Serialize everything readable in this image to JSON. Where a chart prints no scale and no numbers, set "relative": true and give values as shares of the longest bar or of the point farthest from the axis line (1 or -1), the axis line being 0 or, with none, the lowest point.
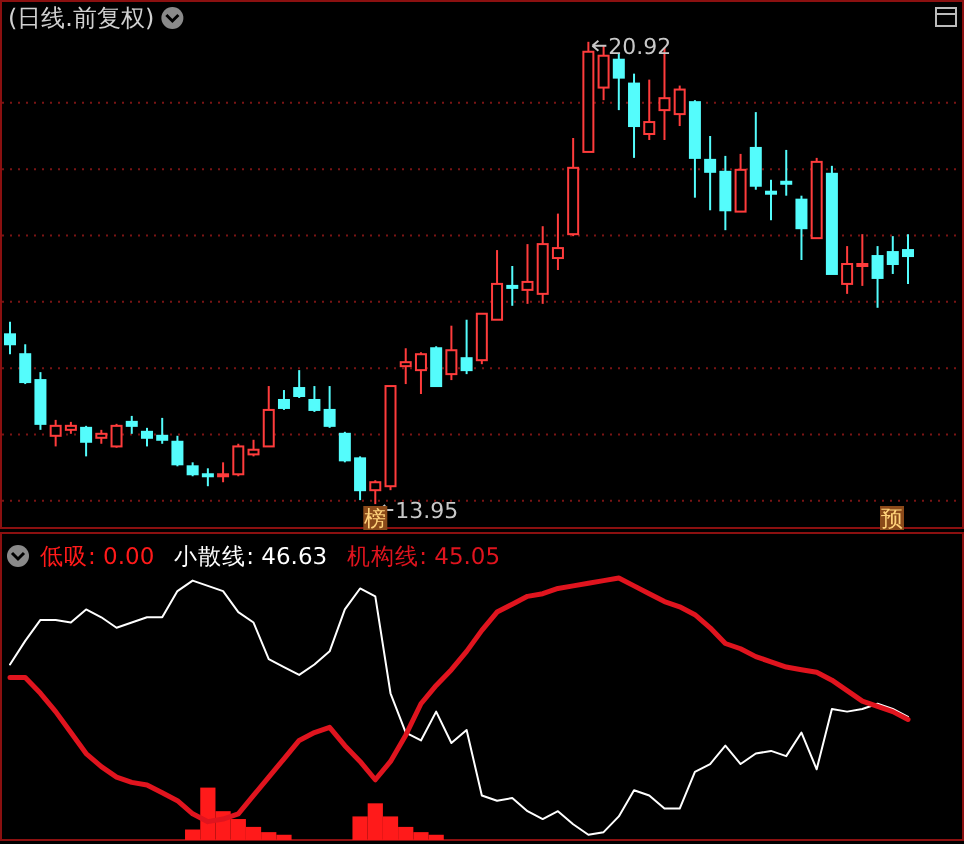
{
  "chart_data": [
    {
      "type": "candlestick",
      "title": "(日线.前复权)",
      "categories": [
        null,
        null,
        null,
        null,
        null,
        null,
        null,
        null,
        null,
        null,
        null,
        null,
        null,
        null,
        null,
        null,
        null,
        null,
        null,
        null,
        null,
        null,
        null,
        null,
        null,
        null,
        null,
        null,
        null,
        null,
        null,
        null,
        null,
        null,
        null,
        null,
        null,
        null,
        null,
        null,
        null,
        null,
        null,
        null,
        null,
        null,
        null,
        null,
        null,
        null,
        null,
        null,
        null,
        null,
        null,
        null,
        null,
        null,
        null,
        null
      ],
      "ohlc": [
        [
          16.51,
          16.7,
          16.21,
          16.36
        ],
        [
          16.21,
          16.36,
          15.76,
          15.79
        ],
        [
          15.82,
          15.94,
          15.07,
          15.16
        ],
        [
          14.98,
          15.22,
          14.82,
          15.13
        ],
        [
          15.07,
          15.19,
          15.01,
          15.13
        ],
        [
          15.1,
          15.13,
          14.67,
          14.89
        ],
        [
          14.95,
          15.07,
          14.86,
          15.01
        ],
        [
          14.82,
          15.16,
          14.8,
          15.13
        ],
        [
          15.19,
          15.28,
          15.01,
          15.13
        ],
        [
          15.04,
          15.1,
          14.82,
          14.95
        ],
        [
          14.98,
          15.25,
          14.86,
          14.92
        ],
        [
          14.89,
          14.98,
          14.52,
          14.55
        ],
        [
          14.52,
          14.58,
          14.37,
          14.4
        ],
        [
          14.4,
          14.49,
          14.22,
          14.37
        ],
        [
          14.37,
          14.58,
          14.28,
          14.4
        ],
        [
          14.4,
          14.86,
          14.37,
          14.82
        ],
        [
          14.7,
          14.92,
          14.67,
          14.77
        ],
        [
          14.82,
          15.73,
          14.82,
          15.37
        ],
        [
          15.52,
          15.67,
          15.37,
          15.4
        ],
        [
          15.7,
          15.97,
          15.55,
          15.58
        ],
        [
          15.52,
          15.73,
          15.34,
          15.37
        ],
        [
          15.37,
          15.73,
          15.1,
          15.13
        ],
        [
          15.01,
          15.04,
          14.58,
          14.61
        ],
        [
          14.64,
          14.67,
          14.01,
          14.16
        ],
        [
          14.16,
          14.31,
          13.95,
          14.28
        ],
        [
          14.22,
          15.73,
          14.16,
          15.73
        ],
        [
          16.03,
          16.3,
          15.76,
          16.09
        ],
        [
          15.97,
          16.24,
          15.61,
          16.21
        ],
        [
          16.3,
          16.33,
          15.73,
          15.73
        ],
        [
          15.91,
          16.64,
          15.82,
          16.27
        ],
        [
          16.15,
          16.73,
          15.91,
          15.97
        ],
        [
          16.12,
          16.82,
          16.06,
          16.82
        ],
        [
          16.73,
          17.78,
          16.73,
          17.27
        ],
        [
          17.24,
          17.54,
          16.94,
          17.21
        ],
        [
          17.18,
          17.87,
          16.97,
          17.3
        ],
        [
          17.12,
          18.14,
          16.97,
          17.87
        ],
        [
          17.66,
          18.33,
          17.48,
          17.81
        ],
        [
          18.02,
          19.47,
          17.99,
          19.02
        ],
        [
          19.26,
          20.92,
          19.26,
          20.77
        ],
        [
          20.23,
          20.86,
          20.04,
          20.71
        ],
        [
          20.65,
          20.74,
          19.89,
          20.38
        ],
        [
          20.29,
          20.44,
          19.17,
          19.65
        ],
        [
          19.53,
          20.35,
          19.44,
          19.71
        ],
        [
          19.89,
          20.83,
          19.44,
          20.07
        ],
        [
          19.83,
          20.26,
          19.65,
          20.2
        ],
        [
          20.01,
          20.04,
          18.57,
          19.17
        ],
        [
          19.14,
          19.5,
          18.38,
          18.96
        ],
        [
          18.96,
          19.2,
          18.08,
          18.38
        ],
        [
          18.36,
          19.23,
          18.36,
          18.99
        ],
        [
          19.32,
          19.86,
          18.69,
          18.75
        ],
        [
          18.66,
          18.84,
          18.23,
          18.63
        ],
        [
          18.81,
          19.29,
          18.6,
          18.78
        ],
        [
          18.54,
          18.6,
          17.63,
          18.11
        ],
        [
          17.96,
          19.17,
          17.96,
          19.11
        ],
        [
          18.93,
          19.05,
          17.42,
          17.42
        ],
        [
          17.27,
          17.84,
          17.12,
          17.57
        ],
        [
          17.54,
          18.02,
          17.24,
          17.57
        ],
        [
          17.69,
          17.84,
          16.91,
          17.36
        ],
        [
          17.75,
          17.99,
          17.42,
          17.57
        ],
        [
          17.78,
          18.02,
          17.27,
          17.69
        ]
      ],
      "ylim": [
        13.59,
        21.49
      ],
      "yticks": [
        {
          "value": 14,
          "label": null
        },
        {
          "value": 15,
          "label": null
        },
        {
          "value": 16,
          "label": null
        },
        {
          "value": 17,
          "label": null
        },
        {
          "value": 18,
          "label": null
        },
        {
          "value": 19,
          "label": null
        },
        {
          "value": 20,
          "label": null
        }
      ],
      "grid": "y",
      "annotations": [
        "20.92",
        "13.95",
        "榜",
        "预"
      ]
    },
    {
      "type": "line",
      "relative": true,
      "legend": "top left",
      "categories": [
        null,
        null,
        null,
        null,
        null,
        null,
        null,
        null,
        null,
        null,
        null,
        null,
        null,
        null,
        null,
        null,
        null,
        null,
        null,
        null,
        null,
        null,
        null,
        null,
        null,
        null,
        null,
        null,
        null,
        null,
        null,
        null,
        null,
        null,
        null,
        null,
        null,
        null,
        null,
        null,
        null,
        null,
        null,
        null,
        null,
        null,
        null,
        null,
        null,
        null,
        null,
        null,
        null,
        null,
        null,
        null,
        null,
        null,
        null,
        null
      ],
      "series": [
        {
          "name": "低吸: 0.00",
          "type": "bar",
          "color": "#ff1a1a",
          "values": [
            null,
            null,
            null,
            null,
            null,
            null,
            null,
            null,
            null,
            null,
            null,
            null,
            0.04,
            0.2,
            0.11,
            0.08,
            0.05,
            0.03,
            0.02,
            null,
            null,
            null,
            null,
            0.09,
            0.14,
            0.09,
            0.05,
            0.03,
            0.02,
            null,
            null,
            null,
            null,
            null,
            null,
            null,
            null,
            null,
            null,
            null,
            null,
            null,
            null,
            null,
            null,
            null,
            null,
            null,
            null,
            null,
            null,
            null,
            null,
            null,
            null,
            null,
            null,
            null,
            null,
            null
          ]
        },
        {
          "name": "小散线: 46.63",
          "color": "#ffffff",
          "values": [
            0.67,
            0.76,
            0.84,
            0.84,
            0.83,
            0.88,
            0.85,
            0.81,
            0.83,
            0.85,
            0.85,
            0.95,
            0.99,
            0.97,
            0.95,
            0.87,
            0.83,
            0.69,
            0.66,
            0.63,
            0.67,
            0.72,
            0.88,
            0.96,
            0.93,
            0.56,
            0.41,
            0.38,
            0.49,
            0.37,
            0.42,
            0.17,
            0.15,
            0.16,
            0.11,
            0.08,
            0.11,
            0.06,
            0.02,
            0.03,
            0.09,
            0.19,
            0.17,
            0.12,
            0.12,
            0.26,
            0.29,
            0.36,
            0.29,
            0.33,
            0.34,
            0.32,
            0.41,
            0.27,
            0.5,
            0.49,
            0.5,
            0.52,
            0.5,
            0.47
          ]
        },
        {
          "name": "机构线: 45.05",
          "color": "#e0141e",
          "values": [
            0.62,
            0.62,
            0.56,
            0.49,
            0.41,
            0.33,
            0.28,
            0.24,
            0.22,
            0.21,
            0.18,
            0.15,
            0.1,
            0.07,
            0.08,
            0.1,
            0.17,
            0.24,
            0.31,
            0.38,
            0.41,
            0.43,
            0.36,
            0.3,
            0.23,
            0.3,
            0.4,
            0.52,
            0.59,
            0.65,
            0.72,
            0.8,
            0.87,
            0.9,
            0.93,
            0.94,
            0.96,
            0.97,
            0.98,
            0.99,
            1.0,
            0.97,
            0.94,
            0.91,
            0.89,
            0.86,
            0.81,
            0.75,
            0.73,
            0.7,
            0.68,
            0.66,
            0.65,
            0.64,
            0.61,
            0.57,
            0.53,
            0.51,
            0.49,
            0.46
          ]
        }
      ]
    }
  ]
}
